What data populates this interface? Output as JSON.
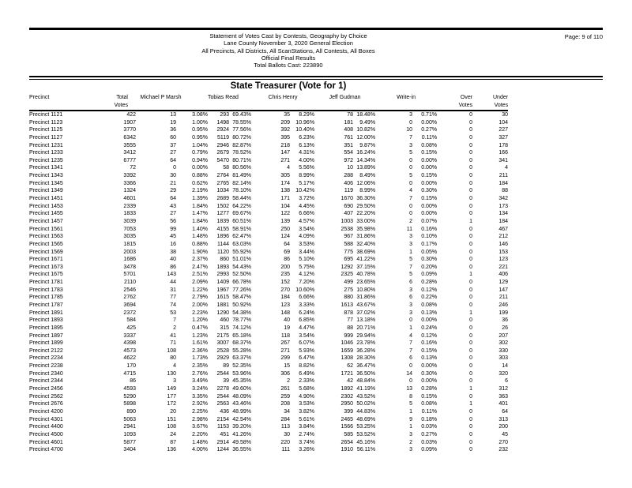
{
  "document_header": {
    "lines": [
      "Statement of Votes Cast by Contests, Geography by Choice",
      "Lane County November 3, 2020 General Election",
      "All Precincts, All Districts, All ScanStations, All Contests, All Boxes",
      "Official Final Results",
      "Total Ballots Cast: 223890"
    ],
    "page_label": "Page: 9 of 110"
  },
  "contest": {
    "title": "State Treasurer (Vote for 1)"
  },
  "table": {
    "headers": {
      "precinct": "Precinct",
      "total": [
        "Total",
        "Votes"
      ],
      "candidates": [
        "Michael P Marsh",
        "Tobias Read",
        "Chris Henry",
        "Jeff Gudman",
        "Write-in"
      ],
      "over": [
        "Over",
        "Votes"
      ],
      "under": [
        "Under",
        "Votes"
      ]
    },
    "rows": [
      [
        "Precinct 1121",
        "422",
        "13",
        "3.08%",
        "293",
        "69.43%",
        "35",
        "8.29%",
        "78",
        "18.48%",
        "3",
        "0.71%",
        "0",
        "30"
      ],
      [
        "Precinct 1123",
        "1907",
        "19",
        "1.00%",
        "1498",
        "78.55%",
        "209",
        "10.96%",
        "181",
        "9.49%",
        "0",
        "0.00%",
        "0",
        "104"
      ],
      [
        "Precinct 1125",
        "3770",
        "36",
        "0.95%",
        "2924",
        "77.56%",
        "392",
        "10.40%",
        "408",
        "10.82%",
        "10",
        "0.27%",
        "0",
        "227"
      ],
      [
        "Precinct 1127",
        "6342",
        "60",
        "0.95%",
        "5119",
        "80.72%",
        "395",
        "6.23%",
        "761",
        "12.00%",
        "7",
        "0.11%",
        "0",
        "327"
      ],
      [
        "Precinct 1231",
        "3555",
        "37",
        "1.04%",
        "2946",
        "82.87%",
        "218",
        "6.13%",
        "351",
        "9.87%",
        "3",
        "0.08%",
        "0",
        "178"
      ],
      [
        "Precinct 1233",
        "3412",
        "27",
        "0.79%",
        "2679",
        "78.52%",
        "147",
        "4.31%",
        "554",
        "16.24%",
        "5",
        "0.15%",
        "0",
        "166"
      ],
      [
        "Precinct 1235",
        "6777",
        "64",
        "0.94%",
        "5470",
        "80.71%",
        "271",
        "4.00%",
        "972",
        "14.34%",
        "0",
        "0.00%",
        "0",
        "341"
      ],
      [
        "Precinct 1341",
        "72",
        "0",
        "0.00%",
        "58",
        "80.56%",
        "4",
        "5.56%",
        "10",
        "13.89%",
        "0",
        "0.00%",
        "0",
        "4"
      ],
      [
        "Precinct 1343",
        "3392",
        "30",
        "0.88%",
        "2764",
        "81.49%",
        "305",
        "8.99%",
        "288",
        "8.49%",
        "5",
        "0.15%",
        "0",
        "211"
      ],
      [
        "Precinct 1345",
        "3366",
        "21",
        "0.62%",
        "2765",
        "82.14%",
        "174",
        "5.17%",
        "406",
        "12.06%",
        "0",
        "0.00%",
        "0",
        "184"
      ],
      [
        "Precinct 1349",
        "1324",
        "29",
        "2.19%",
        "1034",
        "78.10%",
        "138",
        "10.42%",
        "119",
        "8.99%",
        "4",
        "0.30%",
        "0",
        "88"
      ],
      [
        "Precinct 1451",
        "4601",
        "64",
        "1.39%",
        "2689",
        "58.44%",
        "171",
        "3.72%",
        "1670",
        "36.30%",
        "7",
        "0.15%",
        "0",
        "342"
      ],
      [
        "Precinct 1453",
        "2339",
        "43",
        "1.84%",
        "1502",
        "64.22%",
        "104",
        "4.45%",
        "690",
        "29.50%",
        "0",
        "0.00%",
        "0",
        "173"
      ],
      [
        "Precinct 1455",
        "1833",
        "27",
        "1.47%",
        "1277",
        "69.67%",
        "122",
        "6.66%",
        "407",
        "22.20%",
        "0",
        "0.00%",
        "0",
        "134"
      ],
      [
        "Precinct 1457",
        "3039",
        "56",
        "1.84%",
        "1839",
        "60.51%",
        "139",
        "4.57%",
        "1003",
        "33.00%",
        "2",
        "0.07%",
        "1",
        "184"
      ],
      [
        "Precinct 1561",
        "7053",
        "99",
        "1.40%",
        "4155",
        "58.91%",
        "250",
        "3.54%",
        "2538",
        "35.98%",
        "11",
        "0.16%",
        "0",
        "467"
      ],
      [
        "Precinct 1563",
        "3035",
        "45",
        "1.48%",
        "1896",
        "62.47%",
        "124",
        "4.09%",
        "967",
        "31.86%",
        "3",
        "0.10%",
        "0",
        "212"
      ],
      [
        "Precinct 1565",
        "1815",
        "16",
        "0.88%",
        "1144",
        "63.03%",
        "64",
        "3.53%",
        "588",
        "32.40%",
        "3",
        "0.17%",
        "0",
        "146"
      ],
      [
        "Precinct 1569",
        "2003",
        "38",
        "1.90%",
        "1120",
        "55.92%",
        "69",
        "3.44%",
        "775",
        "38.69%",
        "1",
        "0.05%",
        "0",
        "153"
      ],
      [
        "Precinct 1671",
        "1686",
        "40",
        "2.37%",
        "860",
        "51.01%",
        "86",
        "5.10%",
        "695",
        "41.22%",
        "5",
        "0.30%",
        "0",
        "123"
      ],
      [
        "Precinct 1673",
        "3478",
        "86",
        "2.47%",
        "1893",
        "54.43%",
        "200",
        "5.75%",
        "1292",
        "37.15%",
        "7",
        "0.20%",
        "0",
        "221"
      ],
      [
        "Precinct 1675",
        "5701",
        "143",
        "2.51%",
        "2993",
        "52.50%",
        "235",
        "4.12%",
        "2325",
        "40.78%",
        "5",
        "0.09%",
        "1",
        "406"
      ],
      [
        "Precinct 1781",
        "2110",
        "44",
        "2.09%",
        "1409",
        "66.78%",
        "152",
        "7.20%",
        "499",
        "23.65%",
        "6",
        "0.28%",
        "0",
        "129"
      ],
      [
        "Precinct 1783",
        "2546",
        "31",
        "1.22%",
        "1967",
        "77.26%",
        "270",
        "10.60%",
        "275",
        "10.80%",
        "3",
        "0.12%",
        "0",
        "147"
      ],
      [
        "Precinct 1785",
        "2762",
        "77",
        "2.79%",
        "1615",
        "58.47%",
        "184",
        "6.66%",
        "880",
        "31.86%",
        "6",
        "0.22%",
        "0",
        "211"
      ],
      [
        "Precinct 1787",
        "3694",
        "74",
        "2.00%",
        "1881",
        "50.92%",
        "123",
        "3.33%",
        "1613",
        "43.67%",
        "3",
        "0.08%",
        "0",
        "246"
      ],
      [
        "Precinct 1891",
        "2372",
        "53",
        "2.23%",
        "1290",
        "54.38%",
        "148",
        "6.24%",
        "878",
        "37.02%",
        "3",
        "0.13%",
        "1",
        "199"
      ],
      [
        "Precinct 1893",
        "584",
        "7",
        "1.20%",
        "460",
        "78.77%",
        "40",
        "6.85%",
        "77",
        "13.18%",
        "0",
        "0.00%",
        "0",
        "36"
      ],
      [
        "Precinct 1895",
        "425",
        "2",
        "0.47%",
        "315",
        "74.12%",
        "19",
        "4.47%",
        "88",
        "20.71%",
        "1",
        "0.24%",
        "0",
        "26"
      ],
      [
        "Precinct 1897",
        "3337",
        "41",
        "1.23%",
        "2175",
        "65.18%",
        "118",
        "3.54%",
        "999",
        "29.94%",
        "4",
        "0.12%",
        "0",
        "207"
      ],
      [
        "Precinct 1899",
        "4398",
        "71",
        "1.61%",
        "3007",
        "68.37%",
        "267",
        "6.07%",
        "1046",
        "23.78%",
        "7",
        "0.16%",
        "0",
        "302"
      ],
      [
        "Precinct 2122",
        "4573",
        "108",
        "2.36%",
        "2528",
        "55.28%",
        "271",
        "5.93%",
        "1659",
        "36.28%",
        "7",
        "0.15%",
        "0",
        "330"
      ],
      [
        "Precinct 2234",
        "4622",
        "80",
        "1.73%",
        "2929",
        "63.37%",
        "299",
        "6.47%",
        "1308",
        "28.30%",
        "6",
        "0.13%",
        "0",
        "303"
      ],
      [
        "Precinct 2238",
        "170",
        "4",
        "2.35%",
        "89",
        "52.35%",
        "15",
        "8.82%",
        "62",
        "36.47%",
        "0",
        "0.00%",
        "0",
        "14"
      ],
      [
        "Precinct 2340",
        "4715",
        "130",
        "2.76%",
        "2544",
        "53.96%",
        "306",
        "6.49%",
        "1721",
        "36.50%",
        "14",
        "0.30%",
        "0",
        "320"
      ],
      [
        "Precinct 2344",
        "86",
        "3",
        "3.49%",
        "39",
        "45.35%",
        "2",
        "2.33%",
        "42",
        "48.84%",
        "0",
        "0.00%",
        "0",
        "6"
      ],
      [
        "Precinct 2456",
        "4593",
        "149",
        "3.24%",
        "2278",
        "49.60%",
        "261",
        "5.68%",
        "1892",
        "41.19%",
        "13",
        "0.28%",
        "1",
        "312"
      ],
      [
        "Precinct 2562",
        "5290",
        "177",
        "3.35%",
        "2544",
        "48.09%",
        "259",
        "4.90%",
        "2302",
        "43.52%",
        "8",
        "0.15%",
        "0",
        "363"
      ],
      [
        "Precinct 2676",
        "5898",
        "172",
        "2.92%",
        "2563",
        "43.46%",
        "208",
        "3.53%",
        "2950",
        "50.02%",
        "5",
        "0.08%",
        "1",
        "401"
      ],
      [
        "Precinct 4200",
        "890",
        "20",
        "2.25%",
        "436",
        "48.99%",
        "34",
        "3.82%",
        "399",
        "44.83%",
        "1",
        "0.11%",
        "0",
        "64"
      ],
      [
        "Precinct 4301",
        "5063",
        "151",
        "2.98%",
        "2154",
        "42.54%",
        "284",
        "5.61%",
        "2465",
        "48.69%",
        "9",
        "0.18%",
        "0",
        "313"
      ],
      [
        "Precinct 4400",
        "2941",
        "108",
        "3.67%",
        "1153",
        "39.20%",
        "113",
        "3.84%",
        "1566",
        "53.25%",
        "1",
        "0.03%",
        "0",
        "200"
      ],
      [
        "Precinct 4500",
        "1093",
        "24",
        "2.20%",
        "451",
        "41.26%",
        "30",
        "2.74%",
        "585",
        "53.52%",
        "3",
        "0.27%",
        "0",
        "45"
      ],
      [
        "Precinct 4601",
        "5877",
        "87",
        "1.48%",
        "2914",
        "49.58%",
        "220",
        "3.74%",
        "2654",
        "45.16%",
        "2",
        "0.03%",
        "0",
        "270"
      ],
      [
        "Precinct 4700",
        "3404",
        "136",
        "4.00%",
        "1244",
        "36.55%",
        "111",
        "3.26%",
        "1910",
        "56.11%",
        "3",
        "0.09%",
        "0",
        "232"
      ]
    ]
  }
}
